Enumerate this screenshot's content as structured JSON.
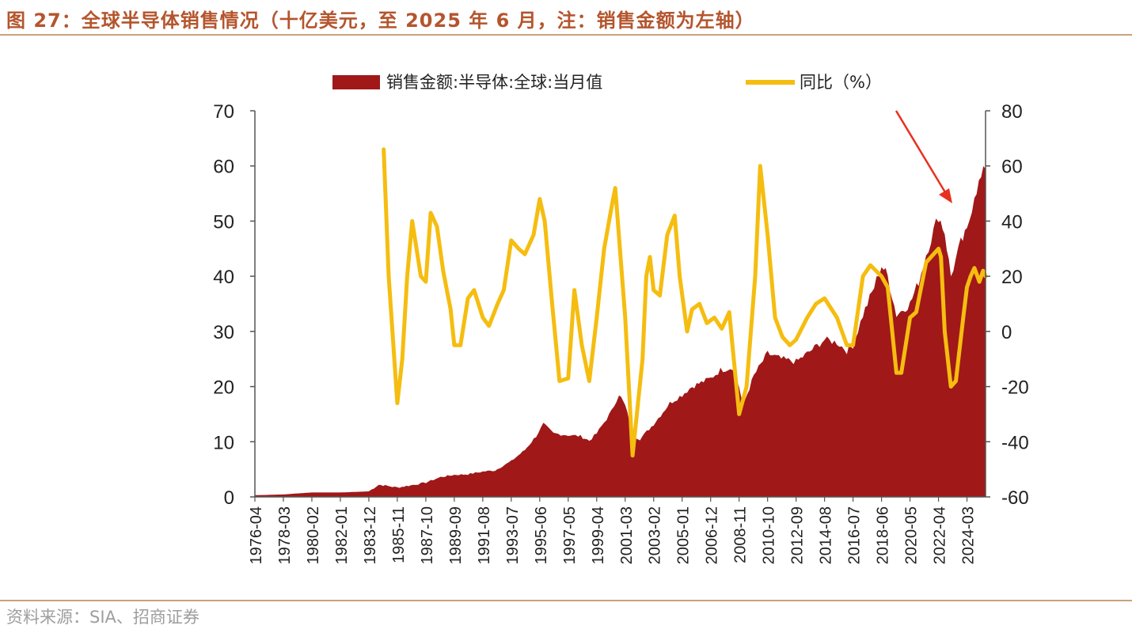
{
  "figure": {
    "title": "图 27：全球半导体销售情况（十亿美元，至 2025 年 6 月，注：销售金额为左轴）",
    "source": "资料来源：SIA、招商证券"
  },
  "chart_data": {
    "type": "area+line",
    "left_axis": {
      "min": 0,
      "max": 70,
      "ticks": [
        0,
        10,
        20,
        30,
        40,
        50,
        60,
        70
      ]
    },
    "right_axis": {
      "min": -60,
      "max": 80,
      "ticks": [
        -60,
        -40,
        -20,
        0,
        20,
        40,
        60,
        80
      ]
    },
    "x_range": [
      "1976-04",
      "2025-06"
    ],
    "x_tick_labels": [
      "1976-04",
      "1978-03",
      "1980-02",
      "1982-01",
      "1983-12",
      "1985-11",
      "1987-10",
      "1989-09",
      "1991-08",
      "1993-07",
      "1995-06",
      "1997-05",
      "1999-04",
      "2001-03",
      "2003-02",
      "2005-01",
      "2006-12",
      "2008-11",
      "2010-10",
      "2012-09",
      "2014-08",
      "2016-07",
      "2018-06",
      "2020-05",
      "2022-04",
      "2024-03"
    ],
    "legend": {
      "placement": "top"
    },
    "colors": {
      "area": "#a01818",
      "line": "#f5bd10",
      "axis": "#555555",
      "arrow": "#e8301f"
    },
    "series": [
      {
        "name": "销售金额:半导体:全球:当月值",
        "axis": "left",
        "style": "area",
        "points": [
          [
            "1976-04",
            0.3
          ],
          [
            "1978-03",
            0.45
          ],
          [
            "1980-02",
            0.8
          ],
          [
            "1982-01",
            0.8
          ],
          [
            "1983-12",
            1.0
          ],
          [
            "1984-08",
            2.2
          ],
          [
            "1985-03",
            2.0
          ],
          [
            "1985-11",
            1.7
          ],
          [
            "1986-10",
            2.1
          ],
          [
            "1987-10",
            2.6
          ],
          [
            "1988-10",
            3.6
          ],
          [
            "1989-09",
            4.0
          ],
          [
            "1990-08",
            4.1
          ],
          [
            "1991-08",
            4.6
          ],
          [
            "1992-06",
            4.8
          ],
          [
            "1993-07",
            6.5
          ],
          [
            "1994-06",
            8.5
          ],
          [
            "1995-03",
            11.0
          ],
          [
            "1995-09",
            13.2
          ],
          [
            "1996-05",
            11.5
          ],
          [
            "1997-05",
            11.2
          ],
          [
            "1998-03",
            11.0
          ],
          [
            "1998-10",
            10.2
          ],
          [
            "1999-04",
            11.5
          ],
          [
            "2000-04",
            15.5
          ],
          [
            "2000-10",
            18.7
          ],
          [
            "2001-03",
            16.5
          ],
          [
            "2001-10",
            11.0
          ],
          [
            "2002-03",
            10.5
          ],
          [
            "2003-02",
            13.2
          ],
          [
            "2004-03",
            17.0
          ],
          [
            "2005-01",
            18.5
          ],
          [
            "2005-09",
            20.0
          ],
          [
            "2006-12",
            21.5
          ],
          [
            "2007-08",
            23.0
          ],
          [
            "2008-06",
            23.5
          ],
          [
            "2008-11",
            20.0
          ],
          [
            "2009-02",
            16.5
          ],
          [
            "2009-11",
            22.0
          ],
          [
            "2010-10",
            26.0
          ],
          [
            "2011-09",
            25.0
          ],
          [
            "2012-09",
            24.5
          ],
          [
            "2013-06",
            26.0
          ],
          [
            "2014-08",
            28.5
          ],
          [
            "2015-06",
            28.0
          ],
          [
            "2016-02",
            26.5
          ],
          [
            "2016-07",
            27.5
          ],
          [
            "2017-03",
            33.0
          ],
          [
            "2017-12",
            38.0
          ],
          [
            "2018-06",
            42.0
          ],
          [
            "2018-11",
            40.0
          ],
          [
            "2019-06",
            33.0
          ],
          [
            "2020-05",
            35.0
          ],
          [
            "2020-12",
            39.0
          ],
          [
            "2021-06",
            44.0
          ],
          [
            "2022-04",
            51.0
          ],
          [
            "2022-09",
            48.0
          ],
          [
            "2023-02",
            40.0
          ],
          [
            "2023-10",
            46.0
          ],
          [
            "2024-03",
            48.0
          ],
          [
            "2024-09",
            55.0
          ],
          [
            "2025-06",
            59.5
          ]
        ]
      },
      {
        "name": "同比（%）",
        "axis": "right",
        "style": "line",
        "points": [
          [
            "1984-12",
            66
          ],
          [
            "1985-04",
            20
          ],
          [
            "1985-11",
            -26
          ],
          [
            "1986-03",
            -10
          ],
          [
            "1986-07",
            20
          ],
          [
            "1986-11",
            40
          ],
          [
            "1987-06",
            20
          ],
          [
            "1987-10",
            18
          ],
          [
            "1988-02",
            43
          ],
          [
            "1988-07",
            38
          ],
          [
            "1988-12",
            22
          ],
          [
            "1989-06",
            8
          ],
          [
            "1989-09",
            -5
          ],
          [
            "1990-02",
            -5
          ],
          [
            "1990-08",
            12
          ],
          [
            "1991-01",
            15
          ],
          [
            "1991-08",
            5
          ],
          [
            "1992-01",
            2
          ],
          [
            "1992-08",
            10
          ],
          [
            "1993-01",
            15
          ],
          [
            "1993-07",
            33
          ],
          [
            "1994-01",
            30
          ],
          [
            "1994-06",
            28
          ],
          [
            "1995-01",
            35
          ],
          [
            "1995-06",
            48
          ],
          [
            "1995-10",
            40
          ],
          [
            "1996-04",
            10
          ],
          [
            "1996-10",
            -18
          ],
          [
            "1997-05",
            -17
          ],
          [
            "1997-10",
            15
          ],
          [
            "1998-04",
            -5
          ],
          [
            "1998-10",
            -18
          ],
          [
            "1999-04",
            5
          ],
          [
            "1999-10",
            30
          ],
          [
            "2000-04",
            45
          ],
          [
            "2000-07",
            52
          ],
          [
            "2001-03",
            5
          ],
          [
            "2001-09",
            -45
          ],
          [
            "2002-05",
            -10
          ],
          [
            "2002-08",
            20
          ],
          [
            "2002-11",
            27
          ],
          [
            "2003-02",
            15
          ],
          [
            "2003-07",
            13
          ],
          [
            "2004-01",
            35
          ],
          [
            "2004-07",
            42
          ],
          [
            "2004-11",
            20
          ],
          [
            "2005-05",
            0
          ],
          [
            "2005-09",
            8
          ],
          [
            "2006-03",
            10
          ],
          [
            "2006-09",
            3
          ],
          [
            "2007-03",
            5
          ],
          [
            "2007-09",
            1
          ],
          [
            "2008-03",
            7
          ],
          [
            "2008-11",
            -30
          ],
          [
            "2009-05",
            -20
          ],
          [
            "2009-12",
            20
          ],
          [
            "2010-04",
            60
          ],
          [
            "2010-10",
            35
          ],
          [
            "2011-04",
            5
          ],
          [
            "2011-10",
            -2
          ],
          [
            "2012-04",
            -5
          ],
          [
            "2012-09",
            -3
          ],
          [
            "2013-06",
            5
          ],
          [
            "2014-01",
            10
          ],
          [
            "2014-08",
            12
          ],
          [
            "2015-06",
            5
          ],
          [
            "2016-02",
            -5
          ],
          [
            "2016-07",
            -5
          ],
          [
            "2017-03",
            20
          ],
          [
            "2017-09",
            24
          ],
          [
            "2018-06",
            20
          ],
          [
            "2018-11",
            16
          ],
          [
            "2019-06",
            -15
          ],
          [
            "2019-10",
            -15
          ],
          [
            "2020-05",
            5
          ],
          [
            "2020-10",
            7
          ],
          [
            "2021-06",
            25
          ],
          [
            "2022-04",
            30
          ],
          [
            "2022-06",
            27
          ],
          [
            "2022-09",
            0
          ],
          [
            "2023-02",
            -20
          ],
          [
            "2023-06",
            -18
          ],
          [
            "2023-12",
            5
          ],
          [
            "2024-03",
            16
          ],
          [
            "2024-06",
            20
          ],
          [
            "2024-09",
            23
          ],
          [
            "2025-01",
            18
          ],
          [
            "2025-04",
            22
          ],
          [
            "2025-06",
            20
          ]
        ]
      }
    ]
  }
}
